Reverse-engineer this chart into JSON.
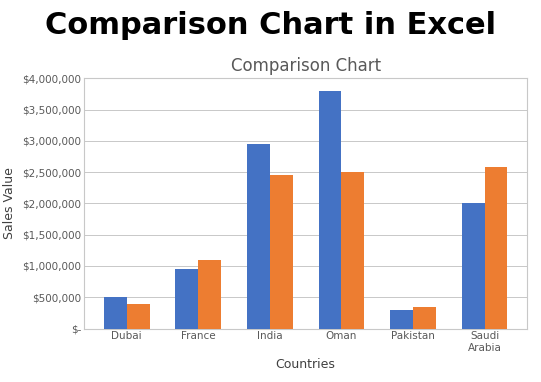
{
  "title_main": "Comparison Chart in Excel",
  "title_chart": "Comparison Chart",
  "xlabel": "Countries",
  "ylabel": "Sales Value",
  "categories": [
    "Dubai",
    "France",
    "India",
    "Oman",
    "Pakistan",
    "Saudi\nArabia"
  ],
  "series1": [
    500000,
    950000,
    2950000,
    3800000,
    300000,
    2000000
  ],
  "series2": [
    390000,
    1100000,
    2450000,
    2500000,
    340000,
    2580000
  ],
  "color1": "#4472C4",
  "color2": "#ED7D31",
  "ylim": [
    0,
    4000000
  ],
  "yticks": [
    0,
    500000,
    1000000,
    1500000,
    2000000,
    2500000,
    3000000,
    3500000,
    4000000
  ],
  "background_main": "#ffffff",
  "background_chart": "#ffffff",
  "grid_color": "#c8c8c8",
  "chart_border_color": "#c8c8c8",
  "title_main_fontsize": 22,
  "title_chart_fontsize": 12,
  "axis_label_fontsize": 9,
  "tick_fontsize": 7.5,
  "bar_width": 0.32
}
